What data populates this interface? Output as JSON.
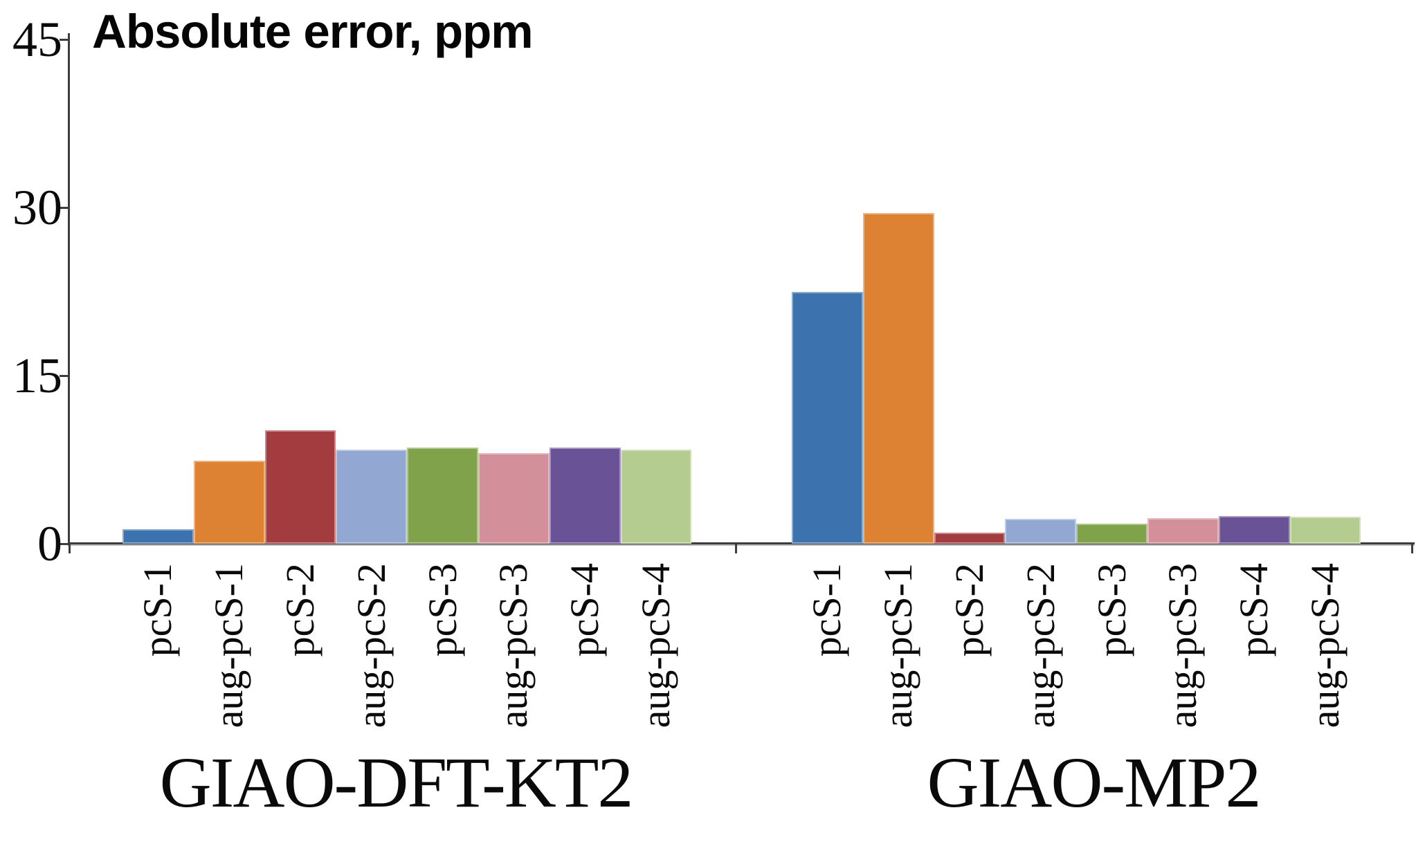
{
  "title": "Absolute error, ppm",
  "chart_data": {
    "type": "bar",
    "title": "Absolute error, ppm",
    "ylabel": "Absolute error, ppm",
    "ylim": [
      0,
      45
    ],
    "yticks": [
      0,
      15,
      30,
      45
    ],
    "grid": false,
    "legend": "none",
    "categories": [
      "pcS-1",
      "aug-pcS-1",
      "pcS-2",
      "aug-pcS-2",
      "pcS-3",
      "aug-pcS-3",
      "pcS-4",
      "aug-pcS-4"
    ],
    "bar_colors": [
      "#3c72ae",
      "#dd8233",
      "#a33c3e",
      "#92a8d2",
      "#7fa24a",
      "#d3909a",
      "#6a5296",
      "#b4cc90"
    ],
    "groups": [
      {
        "label": "GIAO-DFT-KT2",
        "values": [
          1.3,
          7.4,
          10.1,
          8.4,
          8.6,
          8.1,
          8.6,
          8.4
        ]
      },
      {
        "label": "GIAO-MP2",
        "values": [
          22.5,
          29.5,
          1.0,
          2.2,
          1.8,
          2.3,
          2.5,
          2.4
        ]
      }
    ]
  }
}
